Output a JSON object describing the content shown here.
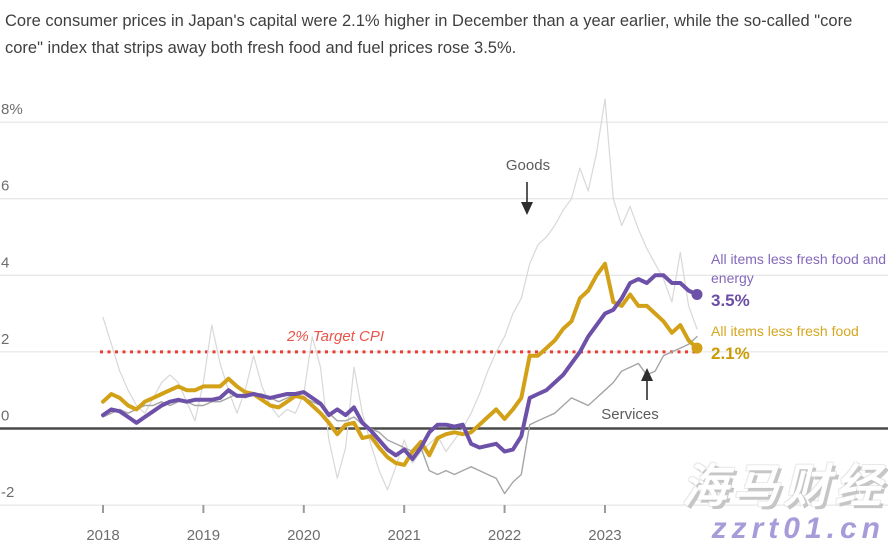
{
  "headline": "Core consumer prices in Japan's capital were 2.1% higher in December than a year earlier, while the so-called \"core core\" index that strips away both fresh food and fuel prices rose 3.5%.",
  "watermark": {
    "cjk": "海马财经",
    "url": "zzrt01.cn"
  },
  "legend": {
    "core_core": {
      "label": "All items less fresh food and energy",
      "value": "3.5%"
    },
    "core": {
      "label": "All items less fresh food",
      "value": "2.1%"
    }
  },
  "chart_data": {
    "type": "line",
    "title": "",
    "x_unit": "month",
    "x_start": "2018-01",
    "x_end": "2023-12",
    "x_tick_labels": [
      "2018",
      "2019",
      "2020",
      "2021",
      "2022",
      "2023"
    ],
    "y_axis": {
      "tick_values": [
        8,
        6,
        4,
        2,
        0,
        -2
      ],
      "tick_labels": [
        "8%",
        "6",
        "4",
        "2",
        "0",
        "-2"
      ],
      "ylim": [
        -2.7,
        8.9
      ],
      "zero_line_dark": true,
      "grid": true
    },
    "target_line": {
      "value": 2,
      "label": "2% Target CPI",
      "color": "#e63e32"
    },
    "annotations": {
      "goods": "Goods",
      "services": "Services"
    },
    "legend_position": "right",
    "series": [
      {
        "name": "Goods",
        "color": "#d8d8d8",
        "width": 1.2,
        "end_dot": false,
        "values": [
          2.9,
          2.2,
          1.5,
          1.0,
          0.6,
          0.4,
          0.8,
          1.2,
          1.4,
          1.2,
          0.7,
          0.2,
          1.2,
          2.7,
          1.7,
          1.0,
          0.4,
          1.0,
          1.9,
          1.1,
          0.6,
          0.3,
          0.5,
          0.4,
          0.9,
          2.4,
          1.6,
          -0.3,
          -1.3,
          -0.5,
          1.6,
          0.4,
          -0.4,
          -1.1,
          -1.6,
          -1.0,
          -0.3,
          -0.9,
          -0.6,
          -0.4,
          -0.2,
          -0.6,
          -0.3,
          0.0,
          0.4,
          0.9,
          1.5,
          2.0,
          2.4,
          3.0,
          3.4,
          4.3,
          4.8,
          5.0,
          5.3,
          5.7,
          6.0,
          6.8,
          6.2,
          7.2,
          8.6,
          6.0,
          5.3,
          5.8,
          5.2,
          4.7,
          4.3,
          3.9,
          3.3,
          4.6,
          3.2,
          2.6
        ]
      },
      {
        "name": "Services",
        "color": "#a5a5a5",
        "width": 1.4,
        "end_dot": false,
        "values": [
          0.3,
          0.4,
          0.5,
          0.4,
          0.5,
          0.6,
          0.6,
          0.7,
          0.6,
          0.7,
          0.7,
          0.6,
          0.6,
          0.7,
          0.7,
          0.8,
          0.9,
          0.8,
          0.9,
          0.9,
          0.8,
          0.7,
          0.8,
          0.9,
          0.8,
          0.7,
          0.6,
          0.4,
          0.2,
          0.2,
          0.3,
          0.1,
          0.0,
          -0.1,
          -0.3,
          -0.4,
          -0.5,
          -0.6,
          -0.5,
          -1.1,
          -1.2,
          -1.1,
          -1.2,
          -1.1,
          -1.0,
          -1.1,
          -1.2,
          -1.3,
          -1.7,
          -1.4,
          -1.2,
          0.1,
          0.2,
          0.3,
          0.4,
          0.6,
          0.8,
          0.7,
          0.6,
          0.8,
          1.0,
          1.2,
          1.5,
          1.6,
          1.7,
          1.4,
          1.5,
          1.9,
          2.0,
          2.1,
          2.2,
          2.4
        ]
      },
      {
        "name": "All items less fresh food",
        "color": "#d2a117",
        "width": 4,
        "end_dot": true,
        "end_value_label": "2.1%",
        "values": [
          0.7,
          0.9,
          0.8,
          0.6,
          0.5,
          0.7,
          0.8,
          0.9,
          1.0,
          1.1,
          1.0,
          1.0,
          1.1,
          1.1,
          1.1,
          1.3,
          1.1,
          0.95,
          0.9,
          0.75,
          0.6,
          0.55,
          0.7,
          0.85,
          0.8,
          0.6,
          0.4,
          0.15,
          -0.15,
          0.1,
          0.15,
          -0.25,
          -0.2,
          -0.5,
          -0.75,
          -0.9,
          -0.95,
          -0.6,
          -0.35,
          -0.7,
          -0.25,
          -0.15,
          -0.1,
          -0.15,
          -0.1,
          0.1,
          0.3,
          0.5,
          0.25,
          0.5,
          0.8,
          1.9,
          1.9,
          2.1,
          2.3,
          2.6,
          2.8,
          3.4,
          3.6,
          4.0,
          4.3,
          3.3,
          3.2,
          3.5,
          3.2,
          3.2,
          3.0,
          2.8,
          2.5,
          2.7,
          2.3,
          2.1
        ]
      },
      {
        "name": "All items less fresh food and energy",
        "color": "#6d51a8",
        "width": 4,
        "end_dot": true,
        "end_value_label": "3.5%",
        "values": [
          0.35,
          0.5,
          0.45,
          0.3,
          0.15,
          0.3,
          0.45,
          0.6,
          0.7,
          0.75,
          0.7,
          0.75,
          0.75,
          0.75,
          0.8,
          1.0,
          0.85,
          0.85,
          0.9,
          0.85,
          0.8,
          0.85,
          0.9,
          0.9,
          0.95,
          0.8,
          0.65,
          0.35,
          0.5,
          0.35,
          0.55,
          0.15,
          -0.05,
          -0.3,
          -0.55,
          -0.7,
          -0.55,
          -0.8,
          -0.5,
          -0.1,
          0.1,
          0.1,
          0.05,
          0.1,
          -0.4,
          -0.5,
          -0.45,
          -0.4,
          -0.6,
          -0.55,
          -0.2,
          0.8,
          0.9,
          1.0,
          1.2,
          1.4,
          1.7,
          2.0,
          2.4,
          2.7,
          3.0,
          3.1,
          3.4,
          3.8,
          3.9,
          3.8,
          4.0,
          4.0,
          3.8,
          3.8,
          3.6,
          3.5
        ]
      }
    ]
  }
}
